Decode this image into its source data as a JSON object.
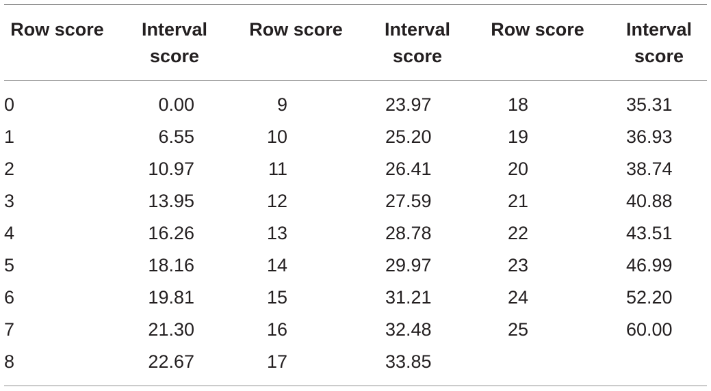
{
  "table": {
    "headers": [
      "Row score",
      "Interval\nscore",
      "Row score",
      "Interval\nscore",
      "Row score",
      "Interval\nscore"
    ],
    "groups": [
      {
        "rows": [
          [
            "0",
            "0.00"
          ],
          [
            "1",
            "6.55"
          ],
          [
            "2",
            "10.97"
          ],
          [
            "3",
            "13.95"
          ],
          [
            "4",
            "16.26"
          ],
          [
            "5",
            "18.16"
          ],
          [
            "6",
            "19.81"
          ],
          [
            "7",
            "21.30"
          ],
          [
            "8",
            "22.67"
          ]
        ]
      },
      {
        "rows": [
          [
            "9",
            "23.97"
          ],
          [
            "10",
            "25.20"
          ],
          [
            "11",
            "26.41"
          ],
          [
            "12",
            "27.59"
          ],
          [
            "13",
            "28.78"
          ],
          [
            "14",
            "29.97"
          ],
          [
            "15",
            "31.21"
          ],
          [
            "16",
            "32.48"
          ],
          [
            "17",
            "33.85"
          ]
        ]
      },
      {
        "rows": [
          [
            "18",
            "35.31"
          ],
          [
            "19",
            "36.93"
          ],
          [
            "20",
            "38.74"
          ],
          [
            "21",
            "40.88"
          ],
          [
            "22",
            "43.51"
          ],
          [
            "23",
            "46.99"
          ],
          [
            "24",
            "52.20"
          ],
          [
            "25",
            "60.00"
          ]
        ]
      }
    ]
  }
}
